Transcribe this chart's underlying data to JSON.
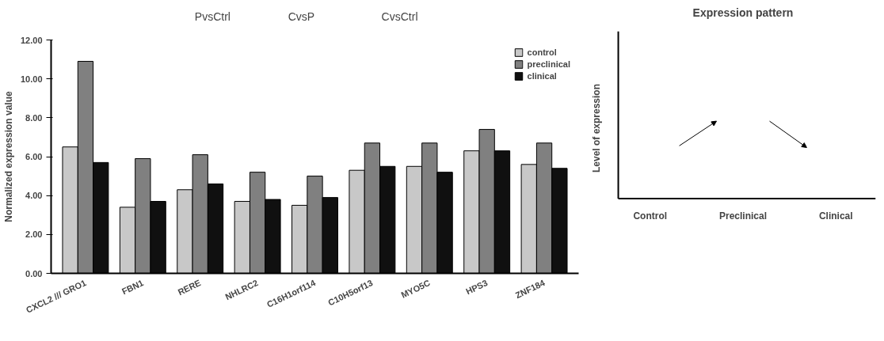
{
  "chart_data": [
    {
      "type": "bar",
      "ylabel": "Normalized expression value",
      "categories": [
        "CXCL2 /// GRO1",
        "FBN1",
        "RERE",
        "NHLRC2",
        "C16H1orf114",
        "C10H5orf13",
        "MYO5C",
        "HPS3",
        "ZNF184"
      ],
      "series": [
        {
          "name": "control",
          "color": "#c8c8c8",
          "values": [
            6.5,
            3.4,
            4.3,
            3.7,
            3.5,
            5.3,
            5.5,
            6.3,
            5.6
          ]
        },
        {
          "name": "preclinical",
          "color": "#808080",
          "values": [
            10.9,
            5.9,
            6.1,
            5.2,
            5.0,
            6.7,
            6.7,
            7.4,
            6.7
          ]
        },
        {
          "name": "clinical",
          "color": "#101010",
          "values": [
            5.7,
            3.7,
            4.6,
            3.8,
            3.9,
            5.5,
            5.2,
            6.3,
            5.4
          ]
        }
      ],
      "ylim": [
        0,
        12
      ],
      "yticks": [
        {
          "value": 0,
          "label": "0.00"
        },
        {
          "value": 2,
          "label": "2.00"
        },
        {
          "value": 4,
          "label": "4.00"
        },
        {
          "value": 6,
          "label": "6.00"
        },
        {
          "value": 8,
          "label": "8.00"
        },
        {
          "value": 10,
          "label": "10.00"
        },
        {
          "value": 12,
          "label": "12.00"
        }
      ],
      "grid": false,
      "legend": "top right",
      "annotations": [
        "PvsCtrl",
        "CvsP",
        "CvsCtrl"
      ]
    },
    {
      "type": "other",
      "title": "Expression pattern",
      "ylabel": "Level of expression",
      "annotations": [
        "Control",
        "Preclinical",
        "Clinical"
      ]
    }
  ]
}
